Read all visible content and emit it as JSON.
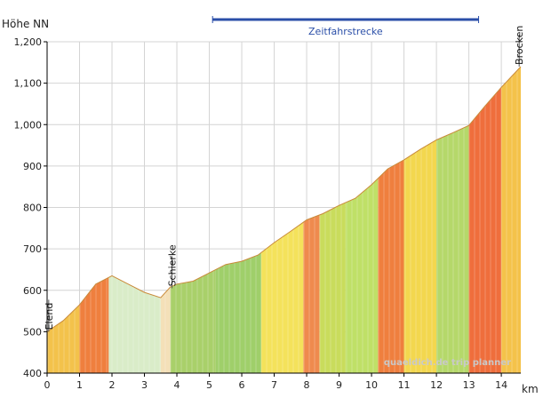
{
  "chart_data": {
    "type": "area",
    "ylabel": "Höhe NN",
    "xlabel": "km",
    "xlim": [
      0,
      14.6
    ],
    "ylim": [
      400,
      1200
    ],
    "x_ticks": [
      0,
      1,
      2,
      3,
      4,
      5,
      6,
      7,
      8,
      9,
      10,
      11,
      12,
      13,
      14
    ],
    "x_tick_labels": [
      "0",
      "1",
      "2",
      "3",
      "4",
      "5",
      "6",
      "7",
      "8",
      "9",
      "10",
      "11",
      "12",
      "13",
      "14"
    ],
    "y_ticks": [
      400,
      500,
      600,
      700,
      800,
      900,
      1000,
      1100,
      1200
    ],
    "y_tick_labels": [
      "400",
      "500",
      "600",
      "700",
      "800",
      "900",
      "1,000",
      "1,100",
      "1,200"
    ],
    "grid": true,
    "profile": {
      "x": [
        0,
        0.5,
        1.0,
        1.5,
        2.0,
        2.5,
        3.0,
        3.5,
        3.8,
        4.0,
        4.5,
        5.0,
        5.5,
        6.0,
        6.5,
        7.0,
        7.5,
        8.0,
        8.5,
        9.0,
        9.5,
        10.0,
        10.5,
        11.0,
        11.5,
        12.0,
        12.5,
        13.0,
        13.5,
        14.0,
        14.6
      ],
      "y": [
        500,
        527,
        565,
        615,
        635,
        615,
        595,
        582,
        608,
        615,
        622,
        642,
        662,
        670,
        685,
        715,
        742,
        770,
        785,
        805,
        822,
        855,
        893,
        915,
        940,
        963,
        980,
        998,
        1045,
        1090,
        1140
      ]
    },
    "gradient_bands": [
      {
        "from": 0,
        "to": 1.0,
        "color": "#f3c24b"
      },
      {
        "from": 1.0,
        "to": 1.9,
        "color": "#ef7f3e"
      },
      {
        "from": 1.9,
        "to": 3.5,
        "color": "#d9ecc8"
      },
      {
        "from": 3.5,
        "to": 3.8,
        "color": "#f4e0b8"
      },
      {
        "from": 3.8,
        "to": 5.2,
        "color": "#a9d06a"
      },
      {
        "from": 5.2,
        "to": 6.6,
        "color": "#9fcf6a"
      },
      {
        "from": 6.6,
        "to": 7.9,
        "color": "#f4e25b"
      },
      {
        "from": 7.9,
        "to": 8.4,
        "color": "#ef8a4e"
      },
      {
        "from": 8.4,
        "to": 9.2,
        "color": "#c9dc5c"
      },
      {
        "from": 9.2,
        "to": 10.2,
        "color": "#bfe067"
      },
      {
        "from": 10.2,
        "to": 11.0,
        "color": "#ef7f3e"
      },
      {
        "from": 11.0,
        "to": 12.0,
        "color": "#f3d74e"
      },
      {
        "from": 12.0,
        "to": 13.0,
        "color": "#b5d86a"
      },
      {
        "from": 13.0,
        "to": 14.0,
        "color": "#ef6e3c"
      },
      {
        "from": 14.0,
        "to": 14.6,
        "color": "#f4c24a"
      }
    ],
    "places": [
      {
        "name": "Elend",
        "x": 0.05,
        "y": 500
      },
      {
        "name": "Schierke",
        "x": 3.85,
        "y": 605
      },
      {
        "name": "Brocken",
        "x": 14.55,
        "y": 1140
      }
    ],
    "segment": {
      "label": "Zeitfahrstrecke",
      "from": 5.1,
      "to": 13.3
    },
    "watermark": "quaeldich.de trip planner"
  }
}
